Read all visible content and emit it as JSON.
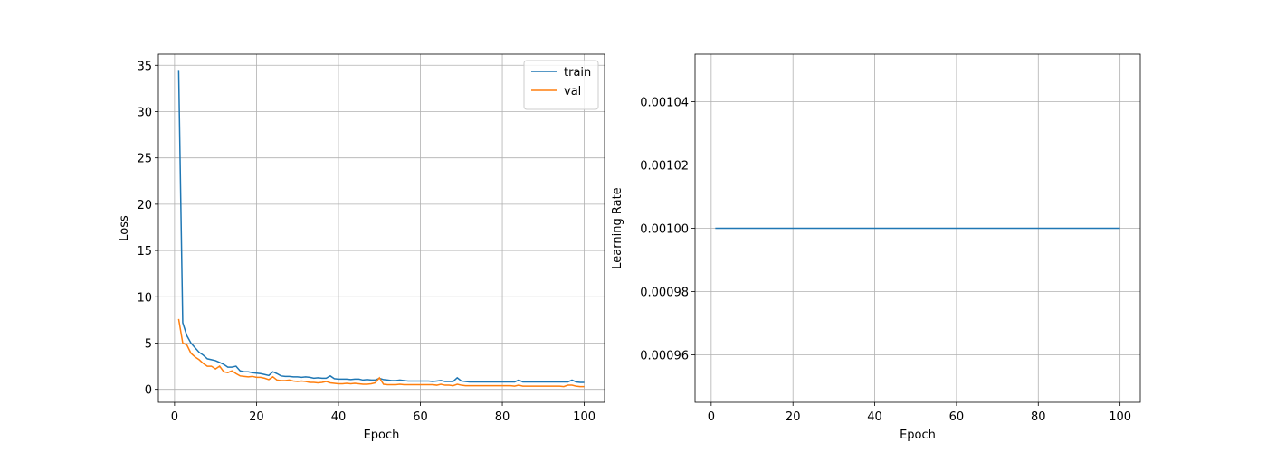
{
  "chart_data": [
    {
      "type": "line",
      "xlabel": "Epoch",
      "ylabel": "Loss",
      "legend": "upper right",
      "grid": true,
      "xlim": [
        -3.95,
        104.95
      ],
      "xticks": [
        0,
        20,
        40,
        60,
        80,
        100
      ],
      "ylim": [
        -1.4,
        36.2
      ],
      "yticks": [
        0,
        5,
        10,
        15,
        20,
        25,
        30,
        35
      ],
      "x": [
        1,
        2,
        3,
        4,
        5,
        6,
        7,
        8,
        9,
        10,
        11,
        12,
        13,
        14,
        15,
        16,
        17,
        18,
        19,
        20,
        21,
        22,
        23,
        24,
        25,
        26,
        27,
        28,
        29,
        30,
        31,
        32,
        33,
        34,
        35,
        36,
        37,
        38,
        39,
        40,
        41,
        42,
        43,
        44,
        45,
        46,
        47,
        48,
        49,
        50,
        51,
        52,
        53,
        54,
        55,
        56,
        57,
        58,
        59,
        60,
        61,
        62,
        63,
        64,
        65,
        66,
        67,
        68,
        69,
        70,
        71,
        72,
        73,
        74,
        75,
        76,
        77,
        78,
        79,
        80,
        81,
        82,
        83,
        84,
        85,
        86,
        87,
        88,
        89,
        90,
        91,
        92,
        93,
        94,
        95,
        96,
        97,
        98,
        99,
        100
      ],
      "series": [
        {
          "name": "train",
          "color": "#1f77b4",
          "values": [
            34.5,
            7.2,
            5.8,
            5.0,
            4.5,
            4.0,
            3.7,
            3.3,
            3.2,
            3.1,
            2.9,
            2.7,
            2.4,
            2.4,
            2.5,
            2.0,
            1.9,
            1.9,
            1.8,
            1.75,
            1.7,
            1.6,
            1.5,
            1.9,
            1.7,
            1.45,
            1.4,
            1.4,
            1.35,
            1.35,
            1.3,
            1.35,
            1.3,
            1.2,
            1.25,
            1.2,
            1.2,
            1.45,
            1.15,
            1.1,
            1.1,
            1.1,
            1.05,
            1.1,
            1.1,
            1.0,
            1.05,
            1.0,
            1.0,
            1.2,
            1.05,
            1.0,
            0.95,
            0.95,
            1.0,
            0.95,
            0.9,
            0.9,
            0.9,
            0.9,
            0.9,
            0.9,
            0.85,
            0.9,
            0.95,
            0.85,
            0.85,
            0.85,
            1.25,
            0.9,
            0.85,
            0.8,
            0.8,
            0.8,
            0.8,
            0.8,
            0.8,
            0.8,
            0.8,
            0.8,
            0.8,
            0.8,
            0.8,
            1.0,
            0.8,
            0.8,
            0.8,
            0.8,
            0.8,
            0.8,
            0.8,
            0.8,
            0.8,
            0.8,
            0.8,
            0.8,
            1.0,
            0.8,
            0.75,
            0.75
          ]
        },
        {
          "name": "val",
          "color": "#ff7f0e",
          "values": [
            7.6,
            5.0,
            4.8,
            3.9,
            3.5,
            3.2,
            2.8,
            2.5,
            2.5,
            2.2,
            2.5,
            1.9,
            1.8,
            2.0,
            1.7,
            1.45,
            1.4,
            1.35,
            1.4,
            1.3,
            1.3,
            1.2,
            1.05,
            1.35,
            1.0,
            0.95,
            0.95,
            1.0,
            0.9,
            0.85,
            0.9,
            0.85,
            0.75,
            0.75,
            0.7,
            0.75,
            0.85,
            0.7,
            0.65,
            0.6,
            0.6,
            0.65,
            0.6,
            0.65,
            0.6,
            0.55,
            0.55,
            0.6,
            0.7,
            1.25,
            0.55,
            0.5,
            0.5,
            0.5,
            0.55,
            0.5,
            0.5,
            0.5,
            0.5,
            0.5,
            0.5,
            0.5,
            0.5,
            0.45,
            0.55,
            0.45,
            0.45,
            0.4,
            0.55,
            0.45,
            0.4,
            0.4,
            0.4,
            0.4,
            0.4,
            0.4,
            0.4,
            0.4,
            0.4,
            0.4,
            0.4,
            0.4,
            0.35,
            0.45,
            0.35,
            0.35,
            0.35,
            0.35,
            0.35,
            0.35,
            0.35,
            0.35,
            0.35,
            0.35,
            0.3,
            0.45,
            0.45,
            0.35,
            0.3,
            0.3
          ]
        }
      ]
    },
    {
      "type": "line",
      "xlabel": "Epoch",
      "ylabel": "Learning Rate",
      "grid": true,
      "color": "#1f77b4",
      "xlim": [
        -3.95,
        104.95
      ],
      "xticks": [
        0,
        20,
        40,
        60,
        80,
        100
      ],
      "ylim": [
        0.000945,
        0.001055
      ],
      "yticks": [
        0.00096,
        0.00098,
        {
          "value": 0.001,
          "label": "0.00100"
        },
        0.00102,
        0.00104
      ],
      "x": [
        1,
        2,
        3,
        4,
        5,
        6,
        7,
        8,
        9,
        10,
        11,
        12,
        13,
        14,
        15,
        16,
        17,
        18,
        19,
        20,
        21,
        22,
        23,
        24,
        25,
        26,
        27,
        28,
        29,
        30,
        31,
        32,
        33,
        34,
        35,
        36,
        37,
        38,
        39,
        40,
        41,
        42,
        43,
        44,
        45,
        46,
        47,
        48,
        49,
        50,
        51,
        52,
        53,
        54,
        55,
        56,
        57,
        58,
        59,
        60,
        61,
        62,
        63,
        64,
        65,
        66,
        67,
        68,
        69,
        70,
        71,
        72,
        73,
        74,
        75,
        76,
        77,
        78,
        79,
        80,
        81,
        82,
        83,
        84,
        85,
        86,
        87,
        88,
        89,
        90,
        91,
        92,
        93,
        94,
        95,
        96,
        97,
        98,
        99,
        100
      ],
      "values": [
        0.001,
        0.001,
        0.001,
        0.001,
        0.001,
        0.001,
        0.001,
        0.001,
        0.001,
        0.001,
        0.001,
        0.001,
        0.001,
        0.001,
        0.001,
        0.001,
        0.001,
        0.001,
        0.001,
        0.001,
        0.001,
        0.001,
        0.001,
        0.001,
        0.001,
        0.001,
        0.001,
        0.001,
        0.001,
        0.001,
        0.001,
        0.001,
        0.001,
        0.001,
        0.001,
        0.001,
        0.001,
        0.001,
        0.001,
        0.001,
        0.001,
        0.001,
        0.001,
        0.001,
        0.001,
        0.001,
        0.001,
        0.001,
        0.001,
        0.001,
        0.001,
        0.001,
        0.001,
        0.001,
        0.001,
        0.001,
        0.001,
        0.001,
        0.001,
        0.001,
        0.001,
        0.001,
        0.001,
        0.001,
        0.001,
        0.001,
        0.001,
        0.001,
        0.001,
        0.001,
        0.001,
        0.001,
        0.001,
        0.001,
        0.001,
        0.001,
        0.001,
        0.001,
        0.001,
        0.001,
        0.001,
        0.001,
        0.001,
        0.001,
        0.001,
        0.001,
        0.001,
        0.001,
        0.001,
        0.001,
        0.001,
        0.001,
        0.001,
        0.001,
        0.001,
        0.001,
        0.001,
        0.001,
        0.001,
        0.001
      ]
    }
  ]
}
